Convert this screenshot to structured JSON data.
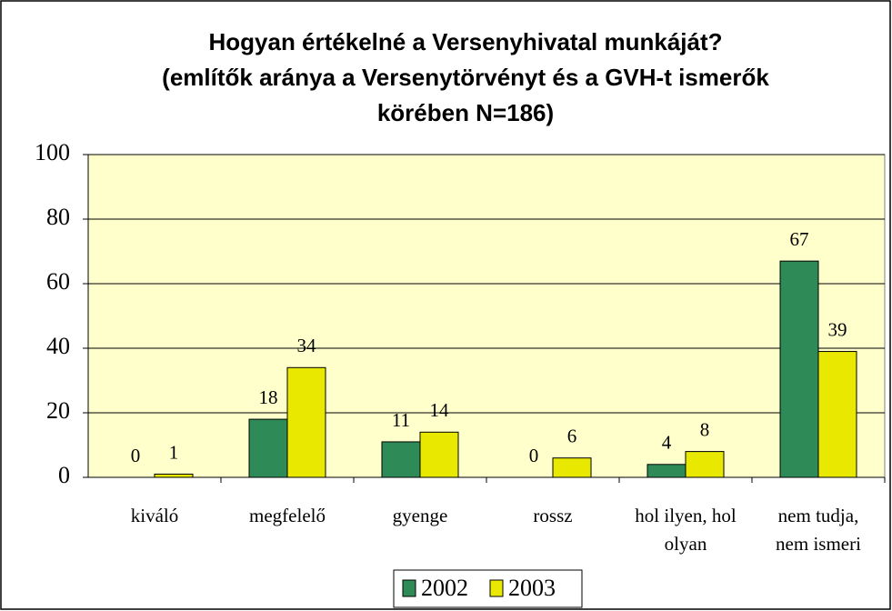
{
  "chart_data": {
    "type": "bar",
    "title": [
      "Hogyan értékelné a Versenyhivatal munkáját?",
      "(említők aránya a Versenytörvényt és a GVH-t ismerők",
      "körében N=186)"
    ],
    "categories": [
      "kiváló",
      "megfelelő",
      "gyenge",
      "rossz",
      "hol ilyen, hol olyan",
      "nem tudja, nem ismeri"
    ],
    "series": [
      {
        "name": "2002",
        "color": "#2e8b57",
        "values": [
          0,
          18,
          11,
          0,
          4,
          67
        ]
      },
      {
        "name": "2003",
        "color": "#e8e800",
        "values": [
          1,
          34,
          14,
          6,
          8,
          39
        ]
      }
    ],
    "ylim": [
      0,
      100
    ],
    "yticks": [
      0,
      20,
      40,
      60,
      80,
      100
    ],
    "grid": true
  }
}
